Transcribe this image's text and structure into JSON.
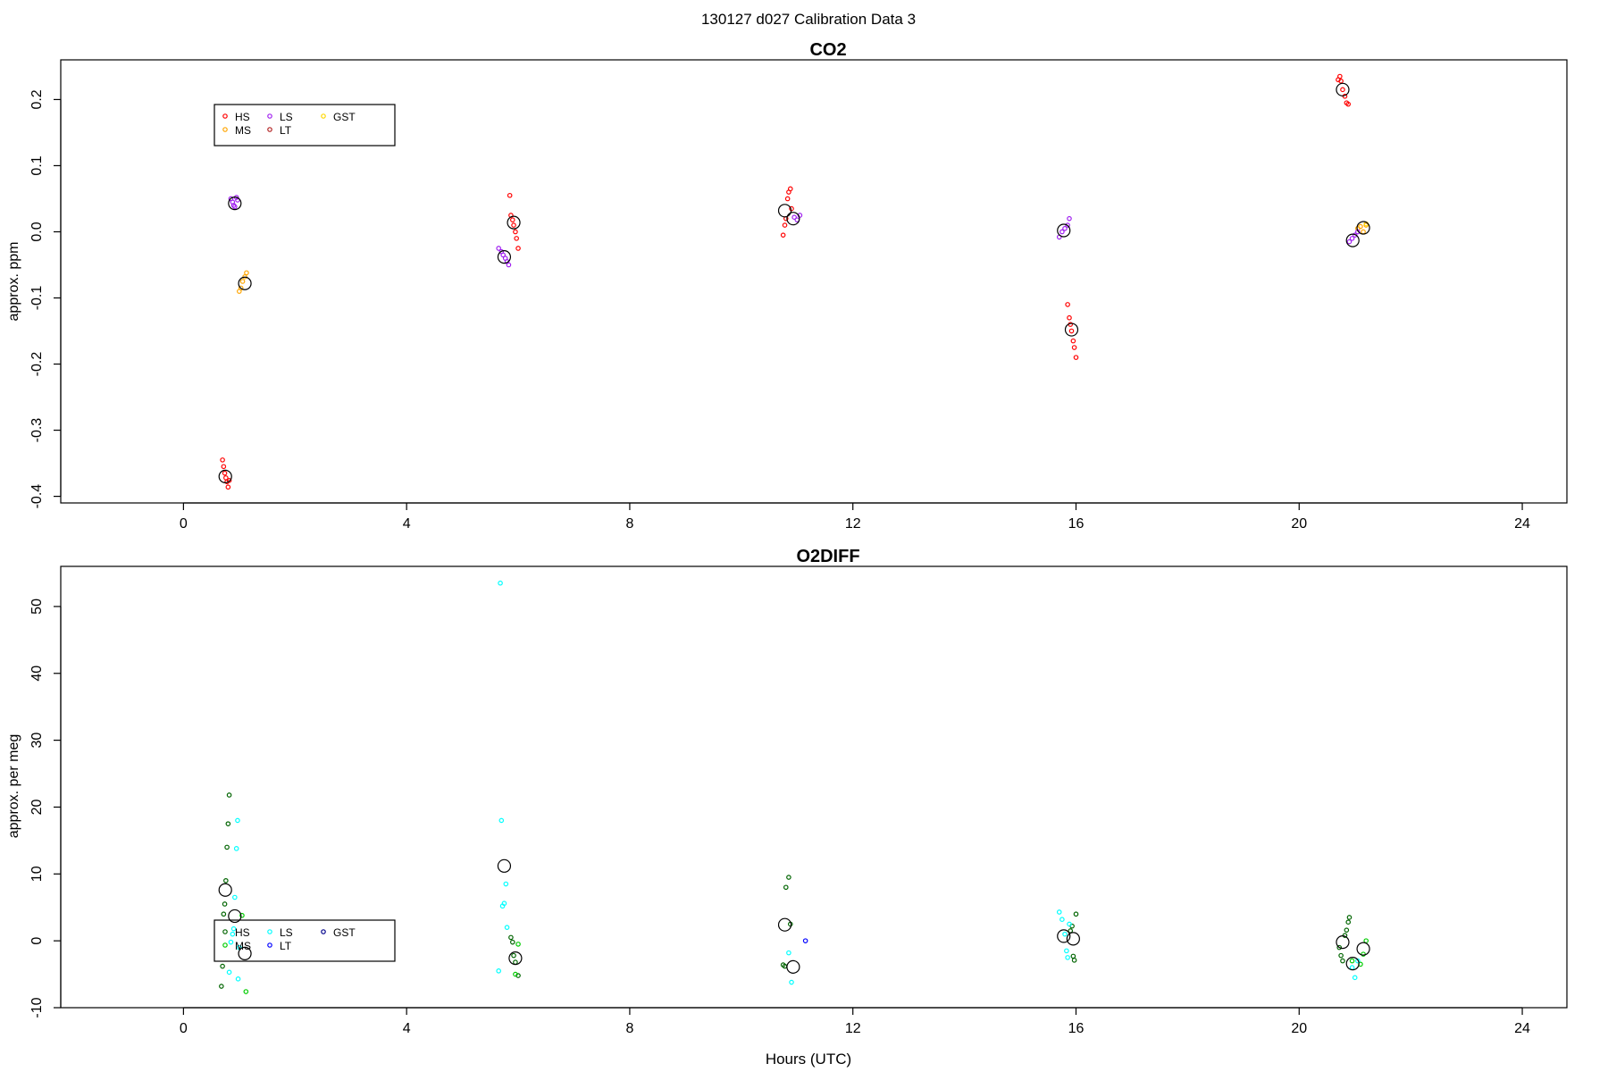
{
  "figure": {
    "title": "130127   d027   Calibration Data 3"
  },
  "chart_data": [
    {
      "type": "scatter",
      "title": "CO2",
      "xlabel": "",
      "ylabel": "approx. ppm",
      "xlim": [
        -2.2,
        24.8
      ],
      "ylim": [
        -0.41,
        0.26
      ],
      "xticks": [
        "0",
        "4",
        "8",
        "12",
        "16",
        "20",
        "24"
      ],
      "yticks": [
        "-0.4",
        "-0.3",
        "-0.2",
        "-0.1",
        "0.0",
        "0.1",
        "0.2"
      ],
      "grid": false,
      "legend": {
        "placement": "top-left",
        "entries": [
          {
            "label": "HS",
            "color": "#ff0000"
          },
          {
            "label": "MS",
            "color": "#ffa500"
          },
          {
            "label": "LS",
            "color": "#a020f0"
          },
          {
            "label": "LT",
            "color": "#b22222"
          },
          {
            "label": "GST",
            "color": "#ffd700"
          }
        ]
      },
      "series": [
        {
          "name": "HS",
          "color": "#ff0000",
          "points": [
            [
              0.7,
              -0.345
            ],
            [
              0.72,
              -0.355
            ],
            [
              0.74,
              -0.365
            ],
            [
              0.76,
              -0.372
            ],
            [
              0.78,
              -0.378
            ],
            [
              0.8,
              -0.386
            ],
            [
              0.82,
              -0.376
            ],
            [
              5.85,
              0.055
            ],
            [
              5.87,
              0.025
            ],
            [
              5.9,
              0.018
            ],
            [
              5.92,
              0.01
            ],
            [
              5.95,
              0.0
            ],
            [
              5.97,
              -0.01
            ],
            [
              6.0,
              -0.025
            ],
            [
              10.75,
              -0.005
            ],
            [
              10.78,
              0.01
            ],
            [
              10.8,
              0.02
            ],
            [
              10.83,
              0.05
            ],
            [
              10.85,
              0.06
            ],
            [
              10.88,
              0.065
            ],
            [
              10.9,
              0.035
            ],
            [
              15.85,
              -0.11
            ],
            [
              15.88,
              -0.13
            ],
            [
              15.9,
              -0.14
            ],
            [
              15.92,
              -0.15
            ],
            [
              15.95,
              -0.165
            ],
            [
              15.97,
              -0.175
            ],
            [
              16.0,
              -0.19
            ],
            [
              20.7,
              0.23
            ],
            [
              20.73,
              0.235
            ],
            [
              20.75,
              0.228
            ],
            [
              20.78,
              0.215
            ],
            [
              20.82,
              0.205
            ],
            [
              20.85,
              0.195
            ],
            [
              20.88,
              0.193
            ]
          ]
        },
        {
          "name": "MS",
          "color": "#ffa500",
          "points": [
            [
              1.0,
              -0.09
            ],
            [
              1.03,
              -0.085
            ],
            [
              1.06,
              -0.075
            ],
            [
              1.1,
              -0.068
            ],
            [
              1.13,
              -0.062
            ],
            [
              21.05,
              0.005
            ],
            [
              21.1,
              0.008
            ],
            [
              21.15,
              0.0
            ],
            [
              21.2,
              0.01
            ]
          ]
        },
        {
          "name": "LS",
          "color": "#a020f0",
          "points": [
            [
              0.85,
              0.05
            ],
            [
              0.88,
              0.045
            ],
            [
              0.9,
              0.04
            ],
            [
              0.92,
              0.038
            ],
            [
              0.95,
              0.052
            ],
            [
              0.97,
              0.048
            ],
            [
              5.65,
              -0.025
            ],
            [
              5.7,
              -0.03
            ],
            [
              5.73,
              -0.035
            ],
            [
              5.77,
              -0.04
            ],
            [
              5.8,
              -0.045
            ],
            [
              5.83,
              -0.05
            ],
            [
              10.95,
              0.022
            ],
            [
              11.0,
              0.018
            ],
            [
              11.05,
              0.025
            ],
            [
              15.7,
              -0.008
            ],
            [
              15.75,
              0.0
            ],
            [
              15.8,
              0.005
            ],
            [
              15.85,
              0.01
            ],
            [
              15.88,
              0.02
            ],
            [
              20.9,
              -0.015
            ],
            [
              20.95,
              -0.01
            ],
            [
              21.0,
              -0.005
            ],
            [
              21.05,
              0.0
            ]
          ]
        },
        {
          "name": "LT",
          "color": "#b22222",
          "points": []
        },
        {
          "name": "GST",
          "color": "#ffd700",
          "points": [
            [
              21.2,
              0.012
            ]
          ]
        }
      ],
      "means": [
        {
          "x": 0.75,
          "y": -0.37,
          "r": 10
        },
        {
          "x": 0.92,
          "y": 0.043,
          "r": 10
        },
        {
          "x": 1.1,
          "y": -0.078,
          "r": 10
        },
        {
          "x": 5.75,
          "y": -0.038,
          "r": 10
        },
        {
          "x": 5.92,
          "y": 0.014,
          "r": 10
        },
        {
          "x": 10.78,
          "y": 0.032,
          "r": 10
        },
        {
          "x": 10.93,
          "y": 0.02,
          "r": 10
        },
        {
          "x": 15.78,
          "y": 0.002,
          "r": 10
        },
        {
          "x": 15.92,
          "y": -0.148,
          "r": 10
        },
        {
          "x": 20.78,
          "y": 0.215,
          "r": 10
        },
        {
          "x": 20.96,
          "y": -0.013,
          "r": 10
        },
        {
          "x": 21.15,
          "y": 0.006,
          "r": 10
        }
      ]
    },
    {
      "type": "scatter",
      "title": "O2DIFF",
      "xlabel": "Hours (UTC)",
      "ylabel": "approx. per meg",
      "xlim": [
        -2.2,
        24.8
      ],
      "ylim": [
        -10,
        56
      ],
      "xticks": [
        "0",
        "4",
        "8",
        "12",
        "16",
        "20",
        "24"
      ],
      "yticks": [
        "-10",
        "0",
        "10",
        "20",
        "30",
        "40",
        "50"
      ],
      "grid": false,
      "legend": {
        "placement": "bottom-left",
        "entries": [
          {
            "label": "HS",
            "color": "#006400"
          },
          {
            "label": "MS",
            "color": "#00cc00"
          },
          {
            "label": "LS",
            "color": "#00ffff"
          },
          {
            "label": "LT",
            "color": "#0000ff"
          },
          {
            "label": "GST",
            "color": "#00008b"
          }
        ]
      },
      "series": [
        {
          "name": "HS",
          "color": "#006400",
          "points": [
            [
              0.68,
              -6.8
            ],
            [
              0.7,
              -3.8
            ],
            [
              0.72,
              4.0
            ],
            [
              0.74,
              5.5
            ],
            [
              0.76,
              9.0
            ],
            [
              0.78,
              14.0
            ],
            [
              0.8,
              17.5
            ],
            [
              0.82,
              21.8
            ],
            [
              5.87,
              0.5
            ],
            [
              5.9,
              -0.2
            ],
            [
              5.92,
              -2.2
            ],
            [
              5.95,
              -3.2
            ],
            [
              6.0,
              -5.2
            ],
            [
              10.75,
              -3.6
            ],
            [
              10.78,
              -3.8
            ],
            [
              10.8,
              8.0
            ],
            [
              10.85,
              9.5
            ],
            [
              10.88,
              2.5
            ],
            [
              15.9,
              1.5
            ],
            [
              15.93,
              2.2
            ],
            [
              15.95,
              -2.3
            ],
            [
              15.97,
              -2.9
            ],
            [
              16.0,
              4.0
            ],
            [
              20.72,
              -1.0
            ],
            [
              20.75,
              -2.2
            ],
            [
              20.78,
              -3.0
            ],
            [
              20.82,
              0.8
            ],
            [
              20.85,
              1.6
            ],
            [
              20.88,
              2.8
            ],
            [
              20.9,
              3.5
            ]
          ]
        },
        {
          "name": "MS",
          "color": "#00cc00",
          "points": [
            [
              1.05,
              3.8
            ],
            [
              1.12,
              -7.6
            ],
            [
              5.95,
              -5.0
            ],
            [
              6.0,
              -0.5
            ],
            [
              20.95,
              -3.0
            ],
            [
              21.1,
              -3.5
            ],
            [
              21.15,
              -2.0
            ],
            [
              21.2,
              0.0
            ]
          ]
        },
        {
          "name": "LS",
          "color": "#00ffff",
          "points": [
            [
              0.85,
              -0.2
            ],
            [
              0.88,
              1.0
            ],
            [
              0.9,
              1.8
            ],
            [
              0.92,
              6.5
            ],
            [
              0.95,
              13.8
            ],
            [
              0.97,
              18.0
            ],
            [
              1.0,
              -1.0
            ],
            [
              0.82,
              -4.7
            ],
            [
              0.98,
              -5.7
            ],
            [
              5.65,
              -4.5
            ],
            [
              5.7,
              18.0
            ],
            [
              5.72,
              5.2
            ],
            [
              5.75,
              5.6
            ],
            [
              5.78,
              8.5
            ],
            [
              5.8,
              2.0
            ],
            [
              5.68,
              53.5
            ],
            [
              10.85,
              -1.8
            ],
            [
              10.9,
              -6.2
            ],
            [
              15.7,
              4.3
            ],
            [
              15.75,
              3.2
            ],
            [
              15.8,
              1.0
            ],
            [
              15.83,
              -1.5
            ],
            [
              15.85,
              -2.5
            ],
            [
              15.88,
              2.5
            ],
            [
              20.95,
              -4.0
            ],
            [
              21.0,
              -5.5
            ],
            [
              21.05,
              -3.0
            ]
          ]
        },
        {
          "name": "LT",
          "color": "#0000ff",
          "points": [
            [
              11.15,
              0.0
            ]
          ]
        },
        {
          "name": "GST",
          "color": "#00008b",
          "points": []
        }
      ],
      "means": [
        {
          "x": 0.75,
          "y": 7.6,
          "r": 10
        },
        {
          "x": 0.92,
          "y": 3.7,
          "r": 10
        },
        {
          "x": 1.1,
          "y": -1.9,
          "r": 10
        },
        {
          "x": 5.75,
          "y": 11.2,
          "r": 10
        },
        {
          "x": 5.95,
          "y": -2.6,
          "r": 10
        },
        {
          "x": 10.78,
          "y": 2.4,
          "r": 10
        },
        {
          "x": 10.93,
          "y": -3.9,
          "r": 10
        },
        {
          "x": 15.78,
          "y": 0.7,
          "r": 10
        },
        {
          "x": 15.95,
          "y": 0.3,
          "r": 10
        },
        {
          "x": 20.78,
          "y": -0.2,
          "r": 10
        },
        {
          "x": 20.96,
          "y": -3.4,
          "r": 10
        },
        {
          "x": 21.15,
          "y": -1.2,
          "r": 10
        }
      ]
    }
  ]
}
